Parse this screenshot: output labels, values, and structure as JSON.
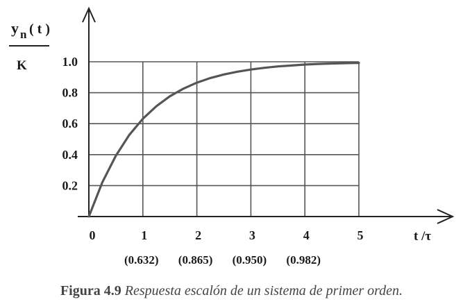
{
  "chart_data": {
    "type": "line",
    "x_ticks": [
      "0",
      "1",
      "2",
      "3",
      "4",
      "5"
    ],
    "x_tick_values": [
      0,
      1,
      2,
      3,
      4,
      5
    ],
    "y_ticks": [
      "0.2",
      "0.4",
      "0.6",
      "0.8",
      "1.0"
    ],
    "y_tick_values": [
      0.2,
      0.4,
      0.6,
      0.8,
      1.0
    ],
    "annotations": [
      "(0.632)",
      "(0.865)",
      "(0.950)",
      "(0.982)"
    ],
    "annotation_x": [
      1,
      2,
      3,
      4
    ],
    "xlim": [
      0,
      5.5
    ],
    "ylim": [
      0,
      1.1
    ],
    "grid": true,
    "ylabel_top": "y",
    "ylabel_sub": "n",
    "ylabel_arg": "( t )",
    "ylabel_denominator": "K",
    "xlabel": "t /τ",
    "series": [
      {
        "x": [
          0,
          0.25,
          0.5,
          0.75,
          1,
          1.25,
          1.5,
          1.75,
          2,
          2.25,
          2.5,
          2.75,
          3,
          3.25,
          3.5,
          3.75,
          4,
          4.25,
          4.5,
          4.75,
          5
        ],
        "values": [
          0,
          0.221,
          0.393,
          0.528,
          0.632,
          0.713,
          0.777,
          0.826,
          0.865,
          0.895,
          0.918,
          0.936,
          0.95,
          0.961,
          0.97,
          0.976,
          0.982,
          0.986,
          0.989,
          0.991,
          0.993
        ]
      }
    ]
  },
  "caption": {
    "label": "Figura 4.9",
    "text": "Respuesta escalón de un sistema de primer orden."
  },
  "colors": {
    "curve": "#555555",
    "axis": "#222222",
    "grid": "#555555"
  }
}
